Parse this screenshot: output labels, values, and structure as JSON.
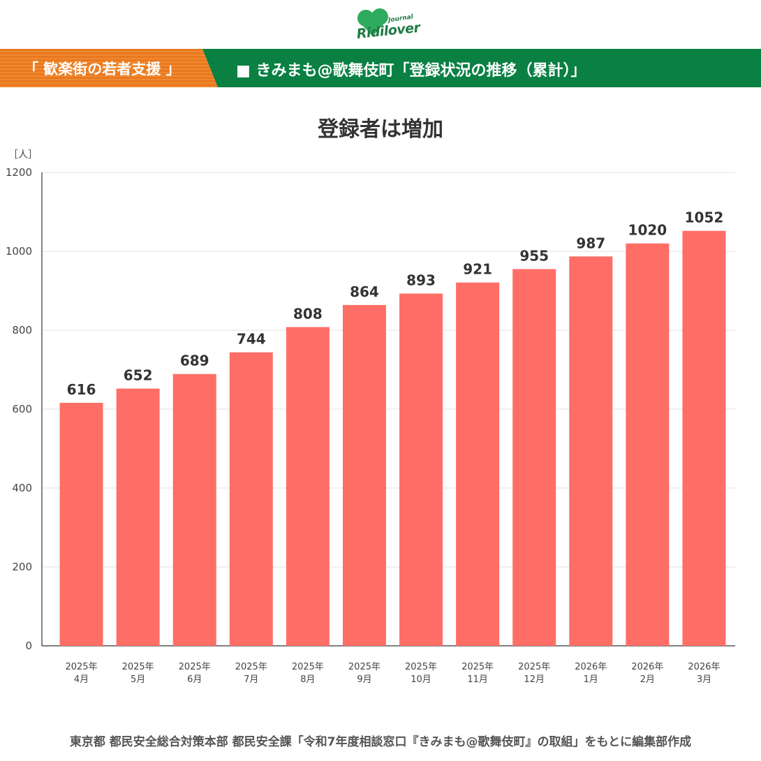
{
  "brand": {
    "name": "Ridilover",
    "sub": "Journal",
    "colors": {
      "green": "#0a8043",
      "orange": "#e8781f",
      "bar": "#ff6e66"
    }
  },
  "banner": {
    "left_label": "「 歓楽街の若者支援 」",
    "right_label": "■ きみまも@歌舞伎町「登録状況の推移（累計）」"
  },
  "source_note": "東京都 都民安全総合対策本部 都民安全課「令和7年度相談窓口『きみまも@歌舞伎町』の取組」をもとに編集部作成",
  "chart_data": {
    "type": "bar",
    "title": "登録者は増加",
    "ylabel": "［人］",
    "xlabel": "",
    "ylim": [
      0,
      1200
    ],
    "yticks": [
      0,
      200,
      400,
      600,
      800,
      1000,
      1200
    ],
    "grid": true,
    "categories": [
      [
        "2025年",
        "4月"
      ],
      [
        "2025年",
        "5月"
      ],
      [
        "2025年",
        "6月"
      ],
      [
        "2025年",
        "7月"
      ],
      [
        "2025年",
        "8月"
      ],
      [
        "2025年",
        "9月"
      ],
      [
        "2025年",
        "10月"
      ],
      [
        "2025年",
        "11月"
      ],
      [
        "2025年",
        "12月"
      ],
      [
        "2026年",
        "1月"
      ],
      [
        "2026年",
        "2月"
      ],
      [
        "2026年",
        "3月"
      ]
    ],
    "values": [
      616,
      652,
      689,
      744,
      808,
      864,
      893,
      921,
      955,
      987,
      1020,
      1052
    ],
    "bar_color": "#ff6e66"
  }
}
